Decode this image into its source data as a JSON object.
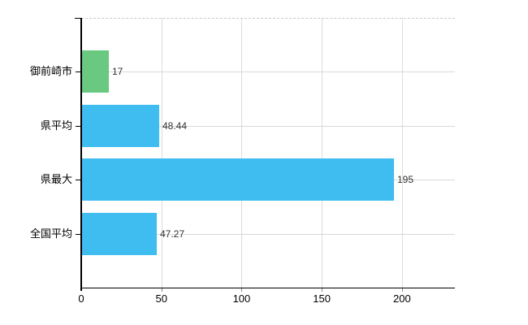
{
  "chart_data": {
    "type": "bar",
    "orientation": "horizontal",
    "title": "",
    "xlabel": "",
    "ylabel": "",
    "categories": [
      "御前崎市",
      "県平均",
      "県最大",
      "全国平均"
    ],
    "values": [
      17,
      48.44,
      195,
      47.27
    ],
    "value_labels": [
      "17",
      "48.44",
      "195",
      "47.27"
    ],
    "bar_colors": [
      "#69c981",
      "#3fbdf1",
      "#3fbdf1",
      "#3fbdf1"
    ],
    "x_ticks": [
      0,
      50,
      100,
      150,
      200
    ],
    "x_tick_labels": [
      "0",
      "50",
      "100",
      "150",
      "200"
    ],
    "xlim": [
      0,
      233
    ],
    "grid": "on",
    "legend": "none",
    "colors": {
      "axis": "#000000",
      "gridline": "#dcdcdc",
      "top_border": "#c9c9c9",
      "value_text": "#333333",
      "tick_text": "#000000"
    }
  }
}
